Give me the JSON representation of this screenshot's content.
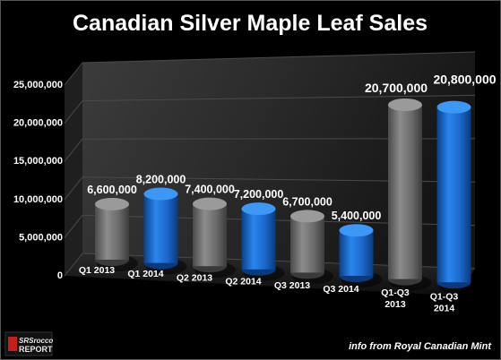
{
  "chart_data": {
    "type": "bar",
    "title": "Canadian Silver Maple Leaf Sales",
    "categories": [
      [
        "Q1 2013"
      ],
      [
        "Q1 2014"
      ],
      [
        "Q2 2013"
      ],
      [
        "Q2 2014"
      ],
      [
        "Q3 2013"
      ],
      [
        "Q3 2014"
      ],
      [
        "Q1-Q3",
        "2013"
      ],
      [
        "Q1-Q3",
        "2014"
      ]
    ],
    "values": [
      6600000,
      8200000,
      7400000,
      7200000,
      6700000,
      5400000,
      20700000,
      20800000
    ],
    "value_labels": [
      "6,600,000",
      "8,200,000",
      "7,400,000",
      "7,200,000",
      "6,700,000",
      "5,400,000",
      "20,700,000",
      "20,800,000"
    ],
    "yticks": [
      "0",
      "5,000,000",
      "10,000,000",
      "15,000,000",
      "20,000,000",
      "25,000,000"
    ],
    "ylim": [
      0,
      25000000
    ],
    "grid": true,
    "legend": "none",
    "colors": {
      "2013": "#7a7a7a",
      "2014": "#1e73d8"
    }
  },
  "footer": {
    "logo_text_1": "SRSrocco",
    "logo_text_2": "REPORT",
    "source_note": "info from Royal Canadian Mint"
  }
}
